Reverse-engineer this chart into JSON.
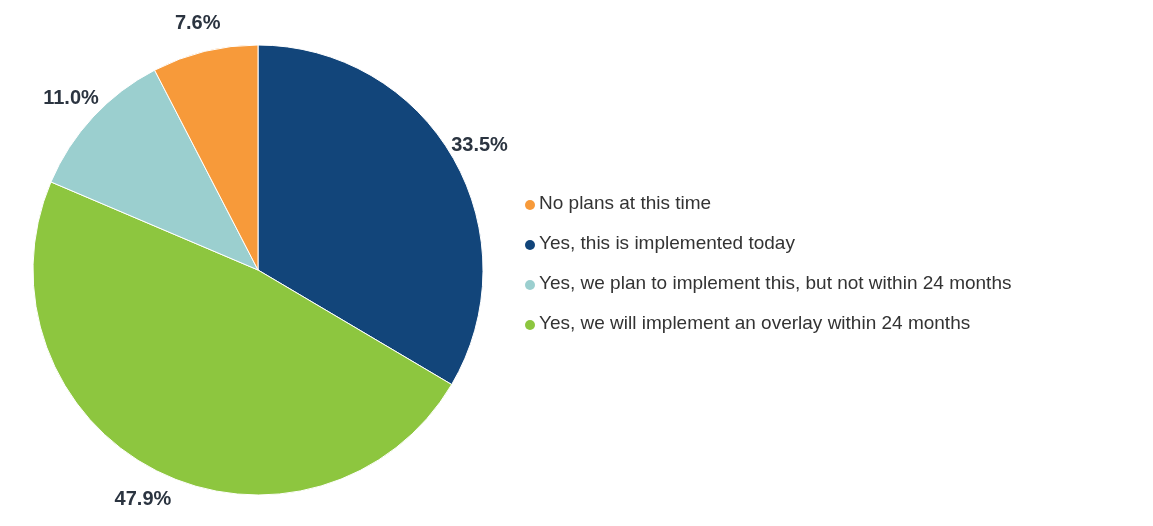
{
  "chart_data": {
    "type": "pie",
    "categories": [
      "Yes, this is implemented today",
      "Yes, we will implement an overlay within 24 months",
      "Yes, we plan to implement this, but not within 24 months",
      "No plans at this time"
    ],
    "values": [
      33.5,
      47.9,
      11.0,
      7.6
    ],
    "colors": [
      "#12457a",
      "#8dc63f",
      "#9bcfcf",
      "#f79a3a"
    ],
    "value_labels": [
      "33.5%",
      "47.9%",
      "11.0%",
      "7.6%"
    ],
    "legend": "right"
  }
}
